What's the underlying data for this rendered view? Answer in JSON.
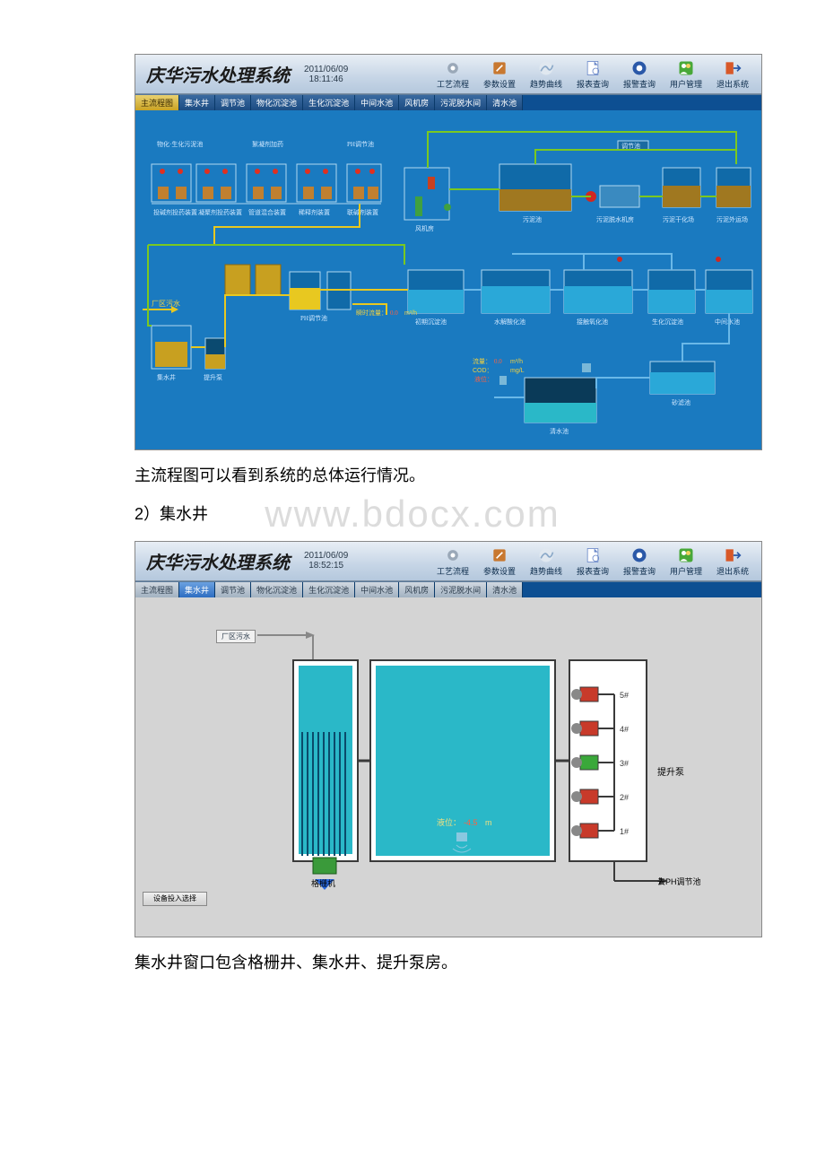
{
  "watermark": "www.bdocx.com",
  "caption1": "主流程图可以看到系统的总体运行情况。",
  "section2_label": "2）集水井",
  "caption2": "集水井窗口包含格栅井、集水井、提升泵房。",
  "screenshot1": {
    "title": "庆华污水处理系统",
    "date": "2011/06/09",
    "time": "18:11:46",
    "header_buttons": [
      {
        "label": "工艺流程",
        "icon": "gear-icon",
        "color": "#9aa8b8"
      },
      {
        "label": "参数设置",
        "icon": "tool-icon",
        "color": "#c87830"
      },
      {
        "label": "趋势曲线",
        "icon": "curve-icon",
        "color": "#8aa8c8"
      },
      {
        "label": "报表查询",
        "icon": "report-icon",
        "color": "#6a88c8"
      },
      {
        "label": "报警查询",
        "icon": "alarm-icon",
        "color": "#2a58a8"
      },
      {
        "label": "用户管理",
        "icon": "user-icon",
        "color": "#48a838"
      },
      {
        "label": "退出系统",
        "icon": "exit-icon",
        "color": "#d85828"
      }
    ],
    "tabs": [
      "主流程图",
      "集水井",
      "调节池",
      "物化沉淀池",
      "生化沉淀池",
      "中间水池",
      "风机房",
      "污泥脱水间",
      "清水池"
    ],
    "active_tab_index": 0,
    "equipment_labels": [
      "物化·生化污泥池",
      "絮凝剂加药",
      "PH调节池",
      "调节池",
      "污泥池",
      "污泥脱水机房",
      "污泥干化场",
      "污泥外运场"
    ],
    "device_labels": [
      "投碱剂投药装置",
      "凝聚剂投药装置",
      "管道混合装置",
      "稀释剂装置",
      "联碱剂装置"
    ],
    "unit_labels": [
      "风机房",
      "污泥池",
      "PH调节池",
      "初期沉淀池",
      "水解酸化池",
      "接触氧化池",
      "生化沉淀池",
      "中间水池",
      "砂滤池",
      "清水池",
      "集水井",
      "提升泵"
    ],
    "inlet_label": "厂区污水",
    "readings": {
      "flow_label": "瞬时流量：",
      "flow_value": "0.0",
      "flow_unit": "m³/h",
      "cod_label": "流量：",
      "cod_value": "0.0",
      "cod_unit": "m³/h",
      "ph_label": "COD：",
      "ph_unit": "mg/L",
      "level_label": "液位："
    },
    "colors": {
      "canvas_bg": "#1a7ac0",
      "pipe_yellow": "#e8c820",
      "pipe_green": "#7ac820",
      "pipe_blue": "#6ab8e8",
      "tank_fill": "#a07820",
      "water_fill": "#2aa8d8"
    }
  },
  "screenshot2": {
    "title": "庆华污水处理系统",
    "date": "2011/06/09",
    "time": "18:52:15",
    "header_buttons": [
      {
        "label": "工艺流程",
        "icon": "gear-icon",
        "color": "#9aa8b8"
      },
      {
        "label": "参数设置",
        "icon": "tool-icon",
        "color": "#c87830"
      },
      {
        "label": "趋势曲线",
        "icon": "curve-icon",
        "color": "#8aa8c8"
      },
      {
        "label": "报表查询",
        "icon": "report-icon",
        "color": "#6a88c8"
      },
      {
        "label": "报警查询",
        "icon": "alarm-icon",
        "color": "#2a58a8"
      },
      {
        "label": "用户管理",
        "icon": "user-icon",
        "color": "#48a838"
      },
      {
        "label": "退出系统",
        "icon": "exit-icon",
        "color": "#d85828"
      }
    ],
    "tabs": [
      "主流程图",
      "集水井",
      "调节池",
      "物化沉淀池",
      "生化沉淀池",
      "中间水池",
      "风机房",
      "污泥脱水间",
      "清水池"
    ],
    "active_tab_index": 1,
    "inlet_label": "厂区污水",
    "grille_label": "格栅机",
    "level_label": "液位：",
    "level_value": "-4.5",
    "level_unit": "m",
    "pump_label": "提升泵",
    "pump_ids": [
      "5#",
      "4#",
      "3#",
      "2#",
      "1#"
    ],
    "outlet_label": "去PH调节池",
    "device_input_button": "设备投入选择",
    "colors": {
      "canvas_bg": "#d4d4d4",
      "well_water": "#2ab8c8",
      "well_dark": "#0a2a3a",
      "grille_color": "#2a6a8a"
    }
  }
}
